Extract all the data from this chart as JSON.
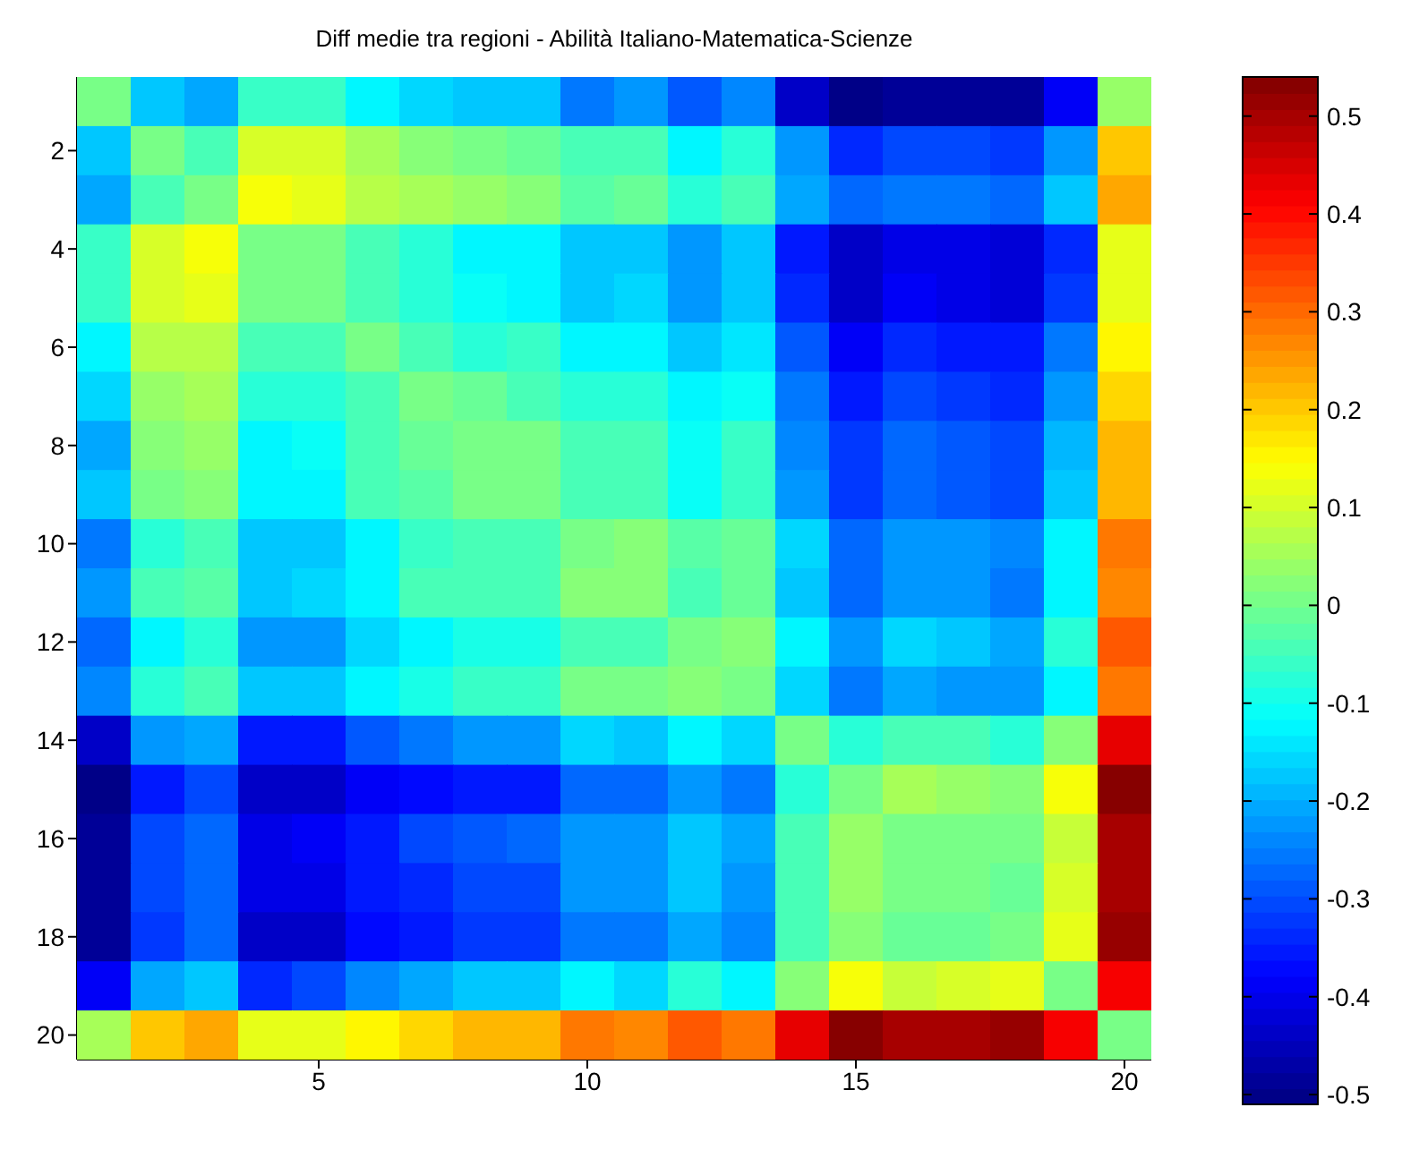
{
  "chart_data": {
    "type": "heatmap",
    "title": "Diff medie tra regioni - Abilità Italiano-Matematica-Scienze",
    "categories": [
      null,
      null,
      null,
      null,
      "5",
      null,
      null,
      null,
      null,
      "10",
      null,
      null,
      null,
      null,
      "15",
      null,
      null,
      null,
      null,
      "20"
    ],
    "y_categories": [
      null,
      "2",
      null,
      "4",
      null,
      "6",
      null,
      "8",
      null,
      "10",
      null,
      "12",
      null,
      "14",
      null,
      "16",
      null,
      "18",
      null,
      "20"
    ],
    "cells": [
      [
        0.0,
        -0.17,
        -0.21,
        -0.06,
        -0.06,
        -0.12,
        -0.16,
        -0.18,
        -0.18,
        -0.25,
        -0.23,
        -0.29,
        -0.24,
        -0.43,
        -0.51,
        -0.48,
        -0.48,
        -0.49,
        -0.38,
        0.04
      ],
      [
        -0.17,
        0.0,
        -0.04,
        0.1,
        0.1,
        0.05,
        0.02,
        0.01,
        -0.01,
        -0.05,
        -0.05,
        -0.12,
        -0.08,
        -0.23,
        -0.33,
        -0.3,
        -0.3,
        -0.32,
        -0.22,
        0.2
      ],
      [
        -0.21,
        -0.04,
        0.0,
        0.14,
        0.12,
        0.08,
        0.06,
        0.04,
        0.02,
        -0.03,
        -0.01,
        -0.07,
        -0.04,
        -0.2,
        -0.28,
        -0.26,
        -0.26,
        -0.28,
        -0.18,
        0.23
      ],
      [
        -0.06,
        0.11,
        0.14,
        0.0,
        0.0,
        -0.05,
        -0.08,
        -0.12,
        -0.12,
        -0.17,
        -0.17,
        -0.22,
        -0.18,
        -0.36,
        -0.43,
        -0.4,
        -0.4,
        -0.42,
        -0.33,
        0.12
      ],
      [
        -0.06,
        0.11,
        0.12,
        0.0,
        0.0,
        -0.05,
        -0.08,
        -0.1,
        -0.13,
        -0.18,
        -0.16,
        -0.22,
        -0.18,
        -0.34,
        -0.44,
        -0.38,
        -0.4,
        -0.42,
        -0.32,
        0.12
      ],
      [
        -0.12,
        0.07,
        0.08,
        -0.05,
        -0.05,
        0.0,
        -0.05,
        -0.07,
        -0.06,
        -0.12,
        -0.12,
        -0.17,
        -0.14,
        -0.29,
        -0.38,
        -0.33,
        -0.35,
        -0.36,
        -0.25,
        0.16
      ],
      [
        -0.15,
        0.04,
        0.05,
        -0.08,
        -0.08,
        -0.04,
        0.0,
        -0.01,
        -0.04,
        -0.08,
        -0.08,
        -0.13,
        -0.1,
        -0.25,
        -0.36,
        -0.3,
        -0.32,
        -0.34,
        -0.22,
        0.18
      ],
      [
        -0.2,
        0.03,
        0.04,
        -0.12,
        -0.1,
        -0.05,
        -0.01,
        0.01,
        0.01,
        -0.05,
        -0.05,
        -0.1,
        -0.06,
        -0.24,
        -0.32,
        -0.28,
        -0.29,
        -0.31,
        -0.19,
        0.22
      ],
      [
        -0.18,
        0.01,
        0.03,
        -0.12,
        -0.12,
        -0.05,
        -0.02,
        0.01,
        0.01,
        -0.05,
        -0.05,
        -0.1,
        -0.06,
        -0.22,
        -0.32,
        -0.27,
        -0.29,
        -0.3,
        -0.18,
        0.22
      ],
      [
        -0.26,
        -0.07,
        -0.04,
        -0.17,
        -0.17,
        -0.12,
        -0.06,
        -0.05,
        -0.05,
        0.01,
        0.03,
        -0.02,
        -0.01,
        -0.16,
        -0.27,
        -0.22,
        -0.22,
        -0.24,
        -0.12,
        0.28
      ],
      [
        -0.23,
        -0.05,
        -0.03,
        -0.17,
        -0.16,
        -0.12,
        -0.05,
        -0.04,
        -0.04,
        0.02,
        0.03,
        -0.04,
        -0.01,
        -0.17,
        -0.27,
        -0.23,
        -0.23,
        -0.26,
        -0.13,
        0.27
      ],
      [
        -0.28,
        -0.12,
        -0.08,
        -0.22,
        -0.22,
        -0.16,
        -0.13,
        -0.09,
        -0.09,
        -0.04,
        -0.04,
        0.0,
        0.03,
        -0.12,
        -0.22,
        -0.16,
        -0.18,
        -0.2,
        -0.08,
        0.32
      ],
      [
        -0.24,
        -0.07,
        -0.04,
        -0.17,
        -0.17,
        -0.13,
        -0.09,
        -0.06,
        -0.06,
        0.0,
        0.0,
        0.03,
        0.0,
        -0.16,
        -0.25,
        -0.2,
        -0.22,
        -0.23,
        -0.12,
        0.28
      ],
      [
        -0.43,
        -0.23,
        -0.2,
        -0.36,
        -0.35,
        -0.29,
        -0.25,
        -0.23,
        -0.22,
        -0.16,
        -0.17,
        -0.12,
        -0.15,
        0.0,
        -0.07,
        -0.05,
        -0.05,
        -0.07,
        0.03,
        0.44
      ],
      [
        -0.51,
        -0.35,
        -0.31,
        -0.44,
        -0.44,
        -0.38,
        -0.37,
        -0.35,
        -0.35,
        -0.28,
        -0.28,
        -0.23,
        -0.26,
        -0.07,
        0.0,
        0.05,
        0.04,
        0.02,
        0.13,
        0.54
      ],
      [
        -0.48,
        -0.3,
        -0.27,
        -0.4,
        -0.38,
        -0.35,
        -0.31,
        -0.29,
        -0.27,
        -0.22,
        -0.23,
        -0.17,
        -0.21,
        -0.05,
        0.04,
        0.0,
        0.0,
        0.0,
        0.09,
        0.5
      ],
      [
        -0.48,
        -0.3,
        -0.27,
        -0.4,
        -0.4,
        -0.36,
        -0.33,
        -0.3,
        -0.3,
        -0.23,
        -0.23,
        -0.18,
        -0.22,
        -0.05,
        0.04,
        0.0,
        0.0,
        -0.01,
        0.1,
        0.5
      ],
      [
        -0.49,
        -0.32,
        -0.28,
        -0.43,
        -0.43,
        -0.37,
        -0.35,
        -0.32,
        -0.32,
        -0.25,
        -0.25,
        -0.21,
        -0.24,
        -0.05,
        0.02,
        -0.01,
        -0.01,
        0.0,
        0.12,
        0.52
      ],
      [
        -0.38,
        -0.21,
        -0.18,
        -0.33,
        -0.31,
        -0.24,
        -0.21,
        -0.18,
        -0.17,
        -0.12,
        -0.15,
        -0.08,
        -0.12,
        0.03,
        0.13,
        0.09,
        0.11,
        0.12,
        0.0,
        0.41
      ],
      [
        0.05,
        0.2,
        0.23,
        0.12,
        0.12,
        0.16,
        0.19,
        0.22,
        0.22,
        0.28,
        0.27,
        0.32,
        0.28,
        0.44,
        0.54,
        0.5,
        0.5,
        0.52,
        0.41,
        0.01
      ]
    ],
    "clim": [
      -0.51,
      0.54
    ],
    "cticks": [
      -0.5,
      -0.4,
      -0.3,
      -0.2,
      -0.1,
      0,
      0.1,
      0.2,
      0.3,
      0.4,
      0.5
    ]
  }
}
